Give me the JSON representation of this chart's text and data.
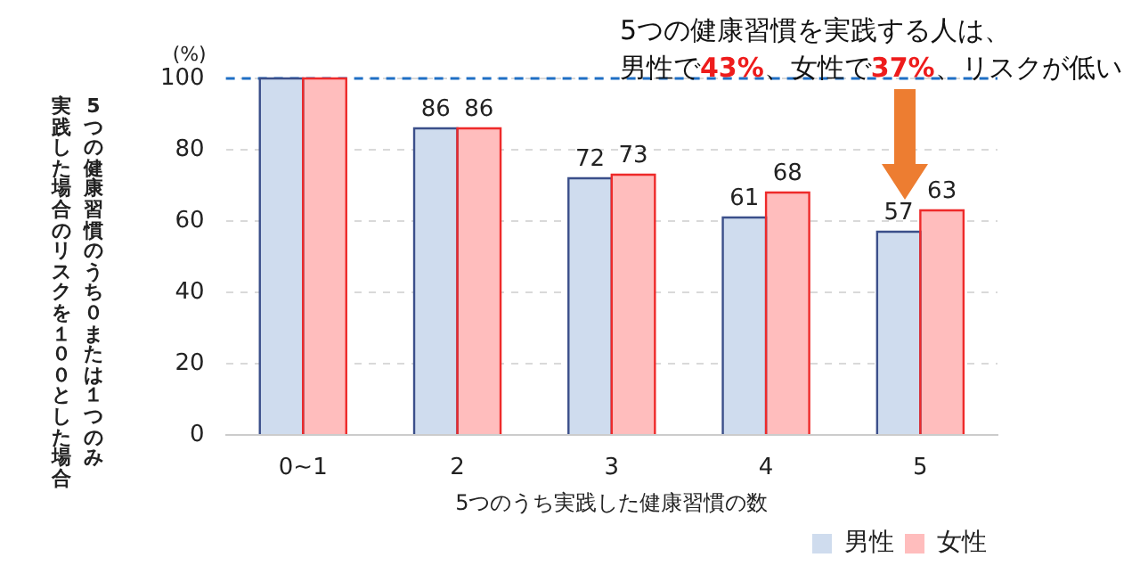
{
  "chart_data": {
    "type": "bar",
    "categories": [
      "0~1",
      "2",
      "3",
      "4",
      "5"
    ],
    "series": [
      {
        "name": "男性",
        "color": "#cfdcee",
        "values": [
          100,
          86,
          72,
          61,
          57
        ],
        "value_labels": [
          null,
          "86",
          "72",
          "61",
          "57"
        ]
      },
      {
        "name": "女性",
        "color": "#ffbdbd",
        "values": [
          100,
          86,
          73,
          68,
          63
        ],
        "value_labels": [
          null,
          "86",
          "73",
          "68",
          "63"
        ]
      }
    ],
    "xlabel": "5つのうち実践した健康習慣の数",
    "ylabel": "5つの健康習慣のうち０または１つのみ実践した場合のリスクを１００とした場合",
    "annotations": [
      "(%)",
      "5つの健康習慣を実践する人は、",
      "男性で43%、女性で37%、リスクが低い"
    ],
    "ylim": [
      0,
      100
    ],
    "yticks": [
      0,
      20,
      40,
      60,
      80,
      100
    ],
    "grid": "y",
    "legend": "bottom right",
    "ref_lines": [
      {
        "axis": "y",
        "value": 100,
        "color": "#1f6fc5",
        "line_style": "dashed"
      }
    ]
  }
}
